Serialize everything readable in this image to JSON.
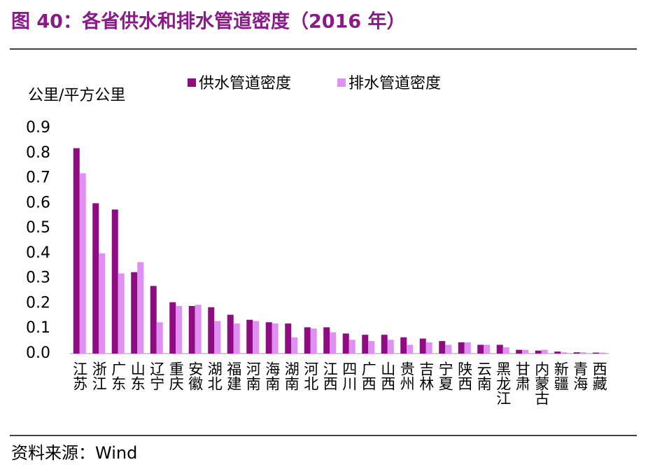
{
  "chart_data": {
    "type": "bar",
    "title": "图 40：各省供水和排水管道密度（2016 年）",
    "y_label": "公里/平方公里",
    "source": "资料来源：Wind",
    "categories": [
      "江苏",
      "浙江",
      "广东",
      "山东",
      "辽宁",
      "重庆",
      "安徽",
      "湖北",
      "福建",
      "河南",
      "海南",
      "湖南",
      "河北",
      "江西",
      "四川",
      "广西",
      "山西",
      "贵州",
      "吉林",
      "宁夏",
      "陕西",
      "云南",
      "黑龙江",
      "甘肃",
      "内蒙古",
      "新疆",
      "青海",
      "西藏"
    ],
    "series": [
      {
        "name": "供水管道密度",
        "color": "#8e0b82",
        "values": [
          0.82,
          0.6,
          0.575,
          0.325,
          0.27,
          0.205,
          0.19,
          0.185,
          0.155,
          0.135,
          0.125,
          0.12,
          0.105,
          0.105,
          0.08,
          0.075,
          0.075,
          0.065,
          0.06,
          0.05,
          0.045,
          0.035,
          0.035,
          0.015,
          0.012,
          0.008,
          0.005,
          0.004
        ]
      },
      {
        "name": "排水管道密度",
        "color": "#e090f2",
        "values": [
          0.72,
          0.4,
          0.32,
          0.365,
          0.125,
          0.19,
          0.195,
          0.13,
          0.12,
          0.13,
          0.12,
          0.065,
          0.1,
          0.085,
          0.055,
          0.05,
          0.055,
          0.035,
          0.045,
          0.035,
          0.045,
          0.035,
          0.025,
          0.015,
          0.015,
          0.005,
          0.005,
          0.004
        ]
      }
    ],
    "ylim": [
      0,
      0.9
    ],
    "yticks": [
      {
        "value": 0,
        "label": "0.0"
      },
      0.1,
      0.2,
      0.3,
      0.4,
      0.5,
      0.6,
      0.7,
      0.8,
      0.9
    ],
    "grid": false
  }
}
